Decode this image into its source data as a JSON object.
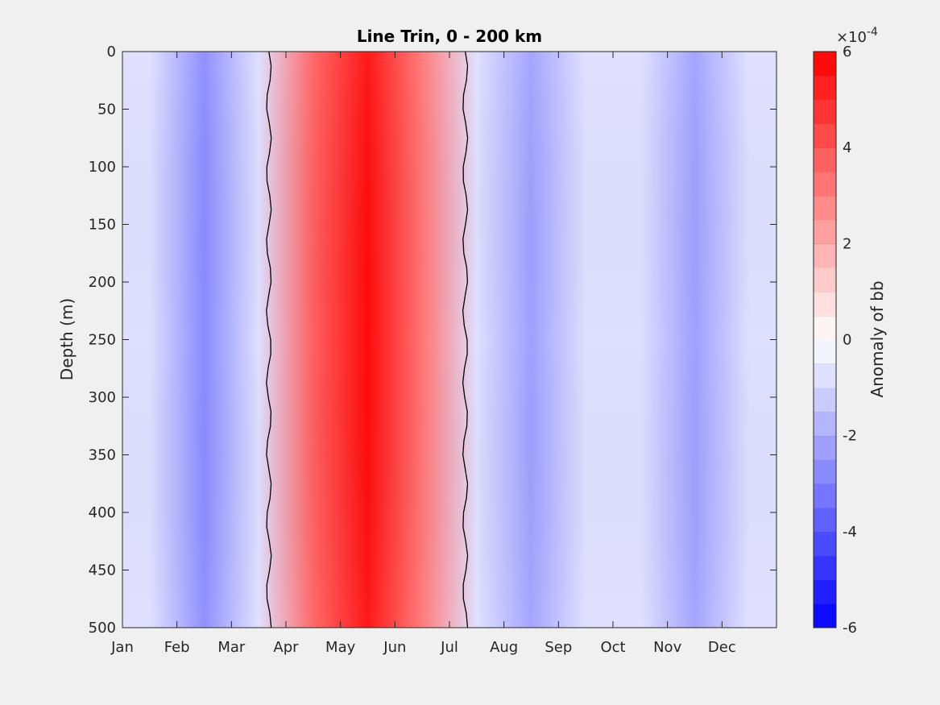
{
  "chart_data": {
    "type": "heatmap",
    "title": "Line Trin, 0 - 200 km",
    "xlabel": "",
    "ylabel": "Depth (m)",
    "x_tick_labels": [
      "Jan",
      "Feb",
      "Mar",
      "Apr",
      "May",
      "Jun",
      "Jul",
      "Aug",
      "Sep",
      "Oct",
      "Nov",
      "Dec"
    ],
    "y_ticks": [
      0,
      50,
      100,
      150,
      200,
      250,
      300,
      350,
      400,
      450,
      500
    ],
    "y_tick_labels": [
      "0",
      "50",
      "100",
      "150",
      "200",
      "250",
      "300",
      "350",
      "400",
      "450",
      "500"
    ],
    "ylim": [
      0,
      500
    ],
    "y_reversed": true,
    "colorbar": {
      "label": "Anomaly of bb",
      "exponent_label": "×10",
      "exponent_power": "-4",
      "range": [
        -6,
        6
      ],
      "ticks": [
        -6,
        -4,
        -2,
        0,
        2,
        4,
        6
      ],
      "tick_labels": [
        "-6",
        "-4",
        "-2",
        "0",
        "2",
        "4",
        "6"
      ],
      "levels": 24,
      "colormap": "blue-white-red",
      "low_color": "#0000ff",
      "mid_color": "#ffffff",
      "high_color": "#ff0000"
    },
    "grid": false,
    "zero_contour": true,
    "month_anomaly_peaks": [
      {
        "month": "Jan",
        "value": -1.0
      },
      {
        "month": "Feb",
        "value": -2.6
      },
      {
        "month": "Mar",
        "value": -0.8
      },
      {
        "month": "Apr",
        "value": 3.5
      },
      {
        "month": "May",
        "value": 6.0
      },
      {
        "month": "Jun",
        "value": 3.0
      },
      {
        "month": "Jul",
        "value": -0.8
      },
      {
        "month": "Aug",
        "value": -2.5
      },
      {
        "month": "Sep",
        "value": -0.6
      },
      {
        "month": "Oct",
        "value": -1.0
      },
      {
        "month": "Nov",
        "value": -2.4
      },
      {
        "month": "Dec",
        "value": -0.8
      }
    ]
  }
}
